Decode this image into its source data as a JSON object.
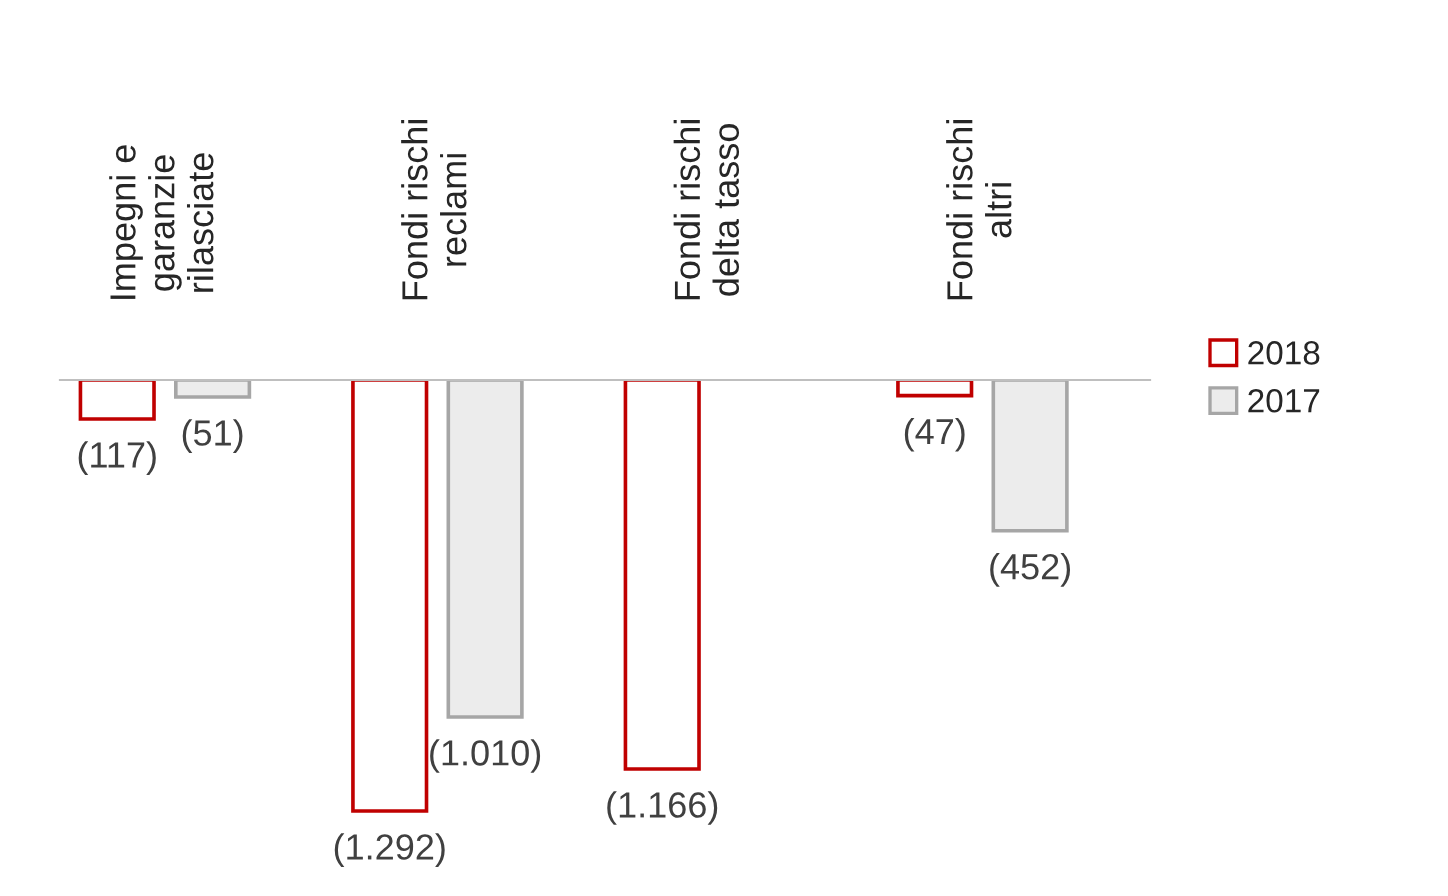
{
  "chart_data": {
    "type": "bar",
    "categories": [
      "Impegni e\ngaranzie\nrilasciate",
      "Fondi rischi\nreclami",
      "Fondi rischi\ndelta tasso",
      "Fondi rischi\naltri"
    ],
    "series": [
      {
        "name": "2018",
        "color": "#c00000",
        "values": [
          -117,
          -1292,
          -1166,
          -47
        ],
        "value_labels": [
          "(117)",
          "(1.292)",
          "(1.166)",
          "(47)"
        ]
      },
      {
        "name": "2017",
        "color": "#ececec",
        "values": [
          -51,
          -1010,
          null,
          -452
        ],
        "value_labels": [
          "(51)",
          "(1.010)",
          null,
          "(452)"
        ]
      }
    ],
    "legend": "right"
  }
}
